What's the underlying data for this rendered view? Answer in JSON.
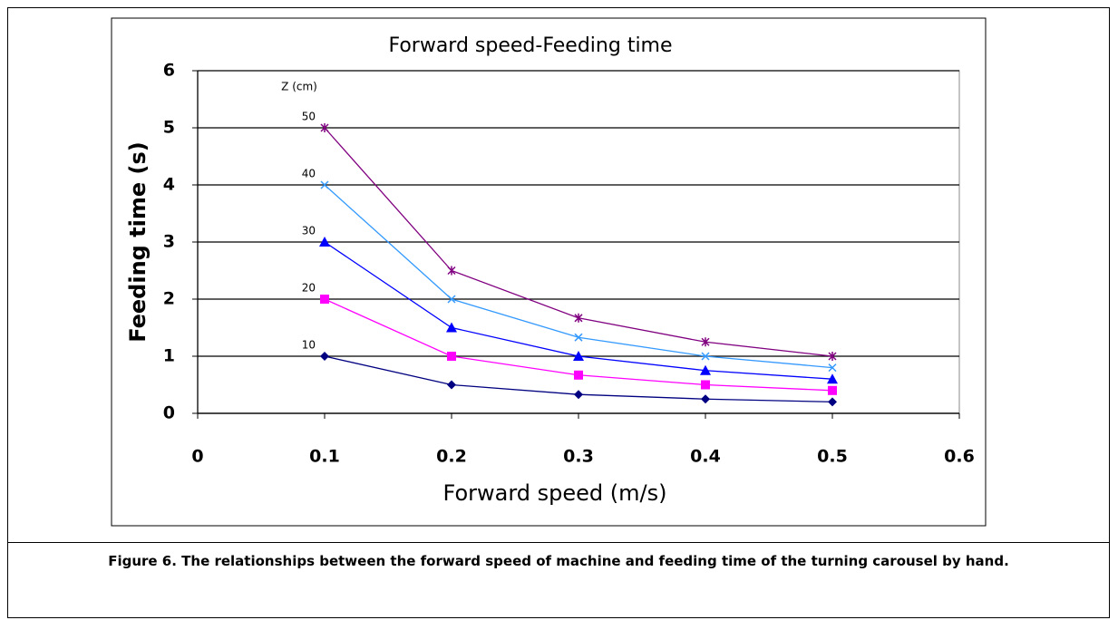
{
  "chart_data": {
    "type": "line",
    "title": "Forward speed-Feeding time",
    "x_label": "Forward speed (m/s)",
    "y_label": "Feeding time (s)",
    "legend_title": "Z (cm)",
    "x": [
      0.1,
      0.2,
      0.3,
      0.4,
      0.5
    ],
    "series": [
      {
        "name": "10",
        "color": "#000080",
        "marker": "diamond",
        "values": [
          1,
          0.5,
          0.33,
          0.25,
          0.2
        ]
      },
      {
        "name": "20",
        "color": "#ff00ff",
        "marker": "square",
        "values": [
          2,
          1,
          0.67,
          0.5,
          0.4
        ]
      },
      {
        "name": "30",
        "color": "#0000ff",
        "marker": "triangle",
        "values": [
          3,
          1.5,
          1,
          0.75,
          0.6
        ]
      },
      {
        "name": "40",
        "color": "#3399ff",
        "marker": "x",
        "values": [
          4,
          2,
          1.33,
          1,
          0.8
        ]
      },
      {
        "name": "50",
        "color": "#800080",
        "marker": "star",
        "values": [
          5,
          2.5,
          1.67,
          1.25,
          1
        ]
      }
    ],
    "xlim": [
      0,
      0.6
    ],
    "xticks": [
      0,
      0.1,
      0.2,
      0.3,
      0.4,
      0.5,
      0.6
    ],
    "ylim": [
      0,
      6
    ],
    "yticks": [
      0,
      1,
      2,
      3,
      4,
      5,
      6
    ],
    "grid": true
  },
  "caption": "Figure 6. The relationships between the forward speed of machine and feeding time of the turning carousel by hand."
}
